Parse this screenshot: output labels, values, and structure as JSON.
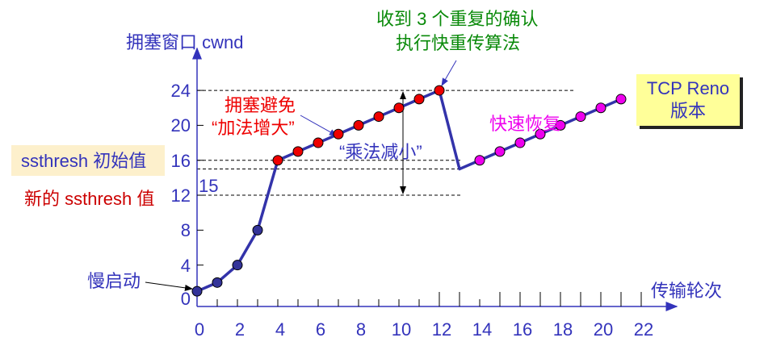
{
  "chart_data": {
    "type": "line",
    "title": "TCP Reno 版本",
    "xlabel": "传输轮次",
    "ylabel": "拥塞窗口 cwnd",
    "xlim": [
      0,
      22
    ],
    "ylim": [
      0,
      24
    ],
    "x_ticks": [
      0,
      2,
      4,
      6,
      8,
      10,
      12,
      14,
      16,
      18,
      20,
      22
    ],
    "y_ticks": [
      0,
      4,
      8,
      12,
      16,
      20,
      24
    ],
    "grid": false,
    "reference_lines": [
      {
        "y": 24,
        "style": "dashed"
      },
      {
        "y": 16,
        "style": "dashed",
        "label": "ssthresh 初始值"
      },
      {
        "y": 15,
        "style": "dashed",
        "label": "15"
      },
      {
        "y": 12,
        "style": "dashed",
        "label": "新的 ssthresh 值"
      }
    ],
    "series": [
      {
        "name": "慢启动",
        "marker_color": "#333399",
        "x": [
          0,
          1,
          2,
          3,
          4
        ],
        "y": [
          1,
          2,
          4,
          8,
          16
        ]
      },
      {
        "name": "拥塞避免 “加法增大”",
        "marker_color": "#ee0000",
        "x": [
          4,
          5,
          6,
          7,
          8,
          9,
          10,
          11,
          12
        ],
        "y": [
          16,
          17,
          18,
          19,
          20,
          21,
          22,
          23,
          24
        ]
      },
      {
        "name": "快速恢复",
        "marker_color": "#ee00ee",
        "x": [
          13,
          14,
          15,
          16,
          17,
          18,
          19,
          20,
          21
        ],
        "y": [
          15,
          16,
          17,
          18,
          19,
          20,
          21,
          22,
          23
        ]
      }
    ],
    "annotations": [
      {
        "text": "慢启动",
        "points_to": [
          0,
          1
        ]
      },
      {
        "text": "拥塞避免",
        "points_to": [
          7,
          19
        ]
      },
      {
        "text": "“加法增大”"
      },
      {
        "text": "“乘法减小”",
        "double_arrow": {
          "x": 10.2,
          "from": 24,
          "to": 12
        }
      },
      {
        "text": "收到 3 个重复的确认",
        "points_to": [
          12,
          24
        ]
      },
      {
        "text": "执行快重传算法"
      },
      {
        "text": "快速恢复"
      },
      {
        "text": "TCP Reno 版本"
      }
    ]
  },
  "labels": {
    "ylabel": "拥塞窗口 cwnd",
    "xlabel": "传输轮次",
    "ssthresh_init": "ssthresh 初始值",
    "ssthresh_new": "新的 ssthresh 值",
    "val15": "15",
    "slow_start": "慢启动",
    "ca_line1": "拥塞避免",
    "ca_line2": "“加法增大”",
    "md": "“乘法减小”",
    "dup_line1": "收到 3 个重复的确认",
    "dup_line2": "执行快重传算法",
    "fast_recovery": "快速恢复",
    "reno_line1": "TCP Reno",
    "reno_line2": "版本"
  },
  "yticks": [
    "0",
    "4",
    "8",
    "12",
    "16",
    "20",
    "24"
  ],
  "xticks": [
    "0",
    "2",
    "4",
    "6",
    "8",
    "10",
    "12",
    "14",
    "16",
    "18",
    "20",
    "22"
  ],
  "colors": {
    "axis": "#3333bb",
    "line": "#3333aa",
    "slow_start_marker": "#333399",
    "ca_marker": "#ee0000",
    "fr_marker": "#ee00ee",
    "label_blue": "#3333bb",
    "label_red": "#ee0000",
    "label_green": "#0a8a0a",
    "label_magenta": "#ee00ee",
    "reno_bg": "#ffff99",
    "init_bg": "#fdf0cc"
  }
}
